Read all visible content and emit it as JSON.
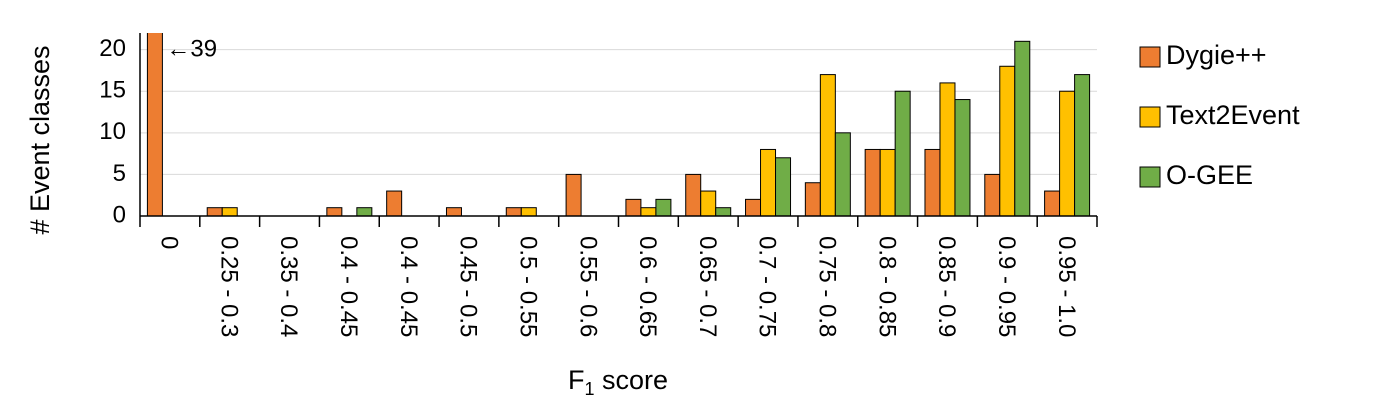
{
  "chart_data": {
    "type": "bar",
    "y_label": "# Event classes",
    "x_label": {
      "text": "F",
      "subscript": "1",
      "suffix": " score"
    },
    "categories": [
      "0",
      "0.25 - 0.3",
      "0.35 - 0.4",
      "0.4 - 0.45",
      "0.4 - 0.45",
      "0.45 - 0.5",
      "0.5 - 0.55",
      "0.55 - 0.6",
      "0.6 - 0.65",
      "0.65 - 0.7",
      "0.7 - 0.75",
      "0.75 - 0.8",
      "0.8 - 0.85",
      "0.85 - 0.9",
      "0.9 - 0.95",
      "0.95 - 1.0"
    ],
    "series": [
      {
        "name": "Dygie++",
        "color": "#ed7d31",
        "values": [
          39,
          1,
          0,
          1,
          3,
          1,
          1,
          5,
          2,
          5,
          2,
          4,
          8,
          8,
          5,
          3
        ],
        "value_labels": [
          "←39",
          null,
          null,
          null,
          null,
          null,
          null,
          null,
          null,
          null,
          null,
          null,
          null,
          null,
          null,
          null
        ]
      },
      {
        "name": "Text2Event",
        "color": "#ffc000",
        "values": [
          0,
          1,
          0,
          0,
          0,
          0,
          1,
          0,
          1,
          3,
          8,
          17,
          8,
          16,
          18,
          15
        ]
      },
      {
        "name": "O-GEE",
        "color": "#70ad47",
        "values": [
          0,
          0,
          0,
          1,
          0,
          0,
          0,
          0,
          2,
          1,
          7,
          10,
          15,
          14,
          21,
          17
        ]
      }
    ],
    "ylim": [
      0,
      22
    ],
    "yticks": [
      0,
      5,
      10,
      15,
      20
    ],
    "grid": true,
    "legend": "right"
  }
}
